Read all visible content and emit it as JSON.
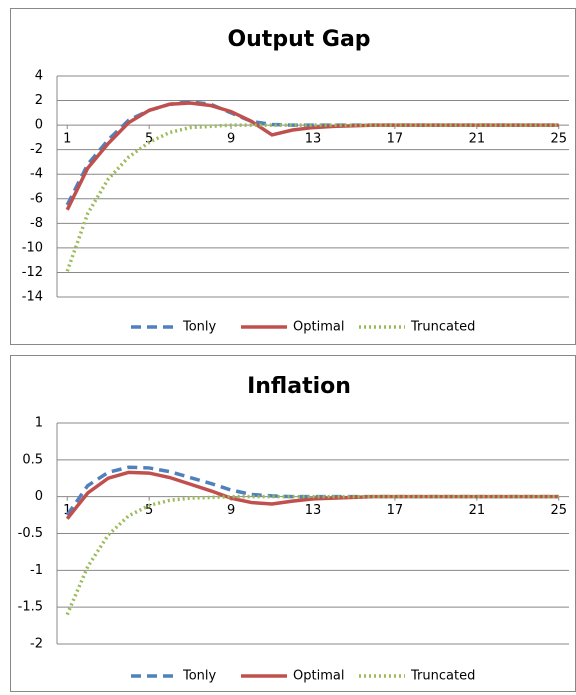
{
  "chart_data": [
    {
      "type": "line",
      "title": "Output Gap",
      "x": [
        1,
        2,
        3,
        4,
        5,
        6,
        7,
        8,
        9,
        10,
        11,
        12,
        13,
        14,
        15,
        16,
        17,
        18,
        19,
        20,
        21,
        22,
        23,
        24,
        25
      ],
      "xlim": [
        0.5,
        25.5
      ],
      "xticks": [
        1,
        5,
        9,
        13,
        17,
        21,
        25
      ],
      "ylim": [
        -14,
        4
      ],
      "yticks": [
        -14,
        -12,
        -10,
        -8,
        -6,
        -4,
        -2,
        0,
        2,
        4
      ],
      "grid": true,
      "legend": "bottom",
      "series": [
        {
          "name": "Tonly",
          "color": "#4f81bd",
          "style": "dashed",
          "values": [
            -6.5,
            -3.2,
            -1.2,
            0.4,
            1.2,
            1.7,
            1.9,
            1.7,
            1.0,
            0.3,
            0.05,
            0,
            0,
            0,
            0,
            0,
            0,
            0,
            0,
            0,
            0,
            0,
            0,
            0,
            0
          ]
        },
        {
          "name": "Optimal",
          "color": "#c0504d",
          "style": "solid",
          "values": [
            -6.9,
            -3.5,
            -1.5,
            0.2,
            1.2,
            1.7,
            1.8,
            1.6,
            1.1,
            0.3,
            -0.8,
            -0.4,
            -0.2,
            -0.1,
            -0.05,
            0,
            0,
            0,
            0,
            0,
            0,
            0,
            0,
            0,
            0
          ]
        },
        {
          "name": "Truncated",
          "color": "#9bbb59",
          "style": "dotted",
          "values": [
            -11.9,
            -7.2,
            -4.4,
            -2.6,
            -1.4,
            -0.6,
            -0.2,
            -0.1,
            0,
            0,
            0,
            0,
            0,
            0,
            0,
            0,
            0,
            0,
            0,
            0,
            0,
            0,
            0,
            0,
            0
          ]
        }
      ]
    },
    {
      "type": "line",
      "title": "Inflation",
      "x": [
        1,
        2,
        3,
        4,
        5,
        6,
        7,
        8,
        9,
        10,
        11,
        12,
        13,
        14,
        15,
        16,
        17,
        18,
        19,
        20,
        21,
        22,
        23,
        24,
        25
      ],
      "xlim": [
        0.5,
        25.5
      ],
      "xticks": [
        1,
        5,
        9,
        13,
        17,
        21,
        25
      ],
      "ylim": [
        -2,
        1
      ],
      "yticks": [
        -2,
        -1.5,
        -1,
        -0.5,
        0,
        0.5,
        1
      ],
      "grid": true,
      "legend": "bottom",
      "series": [
        {
          "name": "Tonly",
          "color": "#4f81bd",
          "style": "dashed",
          "values": [
            -0.25,
            0.15,
            0.33,
            0.4,
            0.39,
            0.34,
            0.26,
            0.18,
            0.09,
            0.03,
            0.01,
            0,
            0,
            0,
            0,
            0,
            0,
            0,
            0,
            0,
            0,
            0,
            0,
            0,
            0
          ]
        },
        {
          "name": "Optimal",
          "color": "#c0504d",
          "style": "solid",
          "values": [
            -0.3,
            0.05,
            0.25,
            0.33,
            0.32,
            0.26,
            0.17,
            0.08,
            -0.02,
            -0.08,
            -0.1,
            -0.06,
            -0.03,
            -0.02,
            -0.01,
            0,
            0,
            0,
            0,
            0,
            0,
            0,
            0,
            0,
            0
          ]
        },
        {
          "name": "Truncated",
          "color": "#9bbb59",
          "style": "dotted",
          "values": [
            -1.6,
            -0.95,
            -0.52,
            -0.26,
            -0.12,
            -0.05,
            -0.02,
            -0.01,
            0,
            0,
            0,
            0,
            0,
            0,
            0,
            0,
            0,
            0,
            0,
            0,
            0,
            0,
            0,
            0,
            0
          ]
        }
      ]
    }
  ]
}
